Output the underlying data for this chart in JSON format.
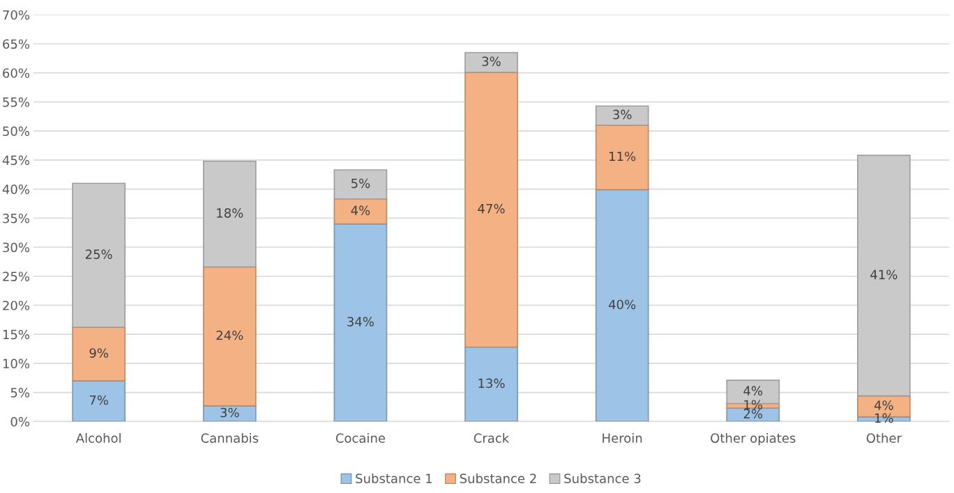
{
  "chart_data": {
    "type": "bar",
    "stacked": true,
    "grid": "y",
    "legend": "bottom",
    "categories": [
      "Alcohol",
      "Cannabis",
      "Cocaine",
      "Crack",
      "Heroin",
      "Other opiates",
      "Other"
    ],
    "series": [
      {
        "name": "Substance 1",
        "color": "#9dc3e6",
        "values": [
          7.0,
          2.7,
          34.0,
          12.8,
          39.9,
          2.3,
          0.8
        ],
        "value_labels": [
          "7%",
          "3%",
          "34%",
          "13%",
          "40%",
          "2%",
          "1%"
        ]
      },
      {
        "name": "Substance 2",
        "color": "#f4b183",
        "values": [
          9.2,
          23.9,
          4.3,
          47.3,
          11.1,
          0.8,
          3.6
        ],
        "value_labels": [
          "9%",
          "24%",
          "4%",
          "47%",
          "11%",
          "1%",
          "4%"
        ]
      },
      {
        "name": "Substance 3",
        "color": "#c9c9c9",
        "values": [
          24.8,
          18.2,
          5.0,
          3.4,
          3.3,
          4.0,
          41.4
        ],
        "value_labels": [
          "25%",
          "18%",
          "5%",
          "3%",
          "3%",
          "4%",
          "41%"
        ]
      }
    ],
    "ylim": [
      0,
      70
    ],
    "yticks": [
      {
        "value": 0,
        "label": "0%"
      },
      {
        "value": 5,
        "label": "5%"
      },
      {
        "value": 10,
        "label": "10%"
      },
      {
        "value": 15,
        "label": "15%"
      },
      {
        "value": 20,
        "label": "20%"
      },
      {
        "value": 25,
        "label": "25%"
      },
      {
        "value": 30,
        "label": "30%"
      },
      {
        "value": 35,
        "label": "35%"
      },
      {
        "value": 40,
        "label": "40%"
      },
      {
        "value": 45,
        "label": "45%"
      },
      {
        "value": 50,
        "label": "50%"
      },
      {
        "value": 55,
        "label": "55%"
      },
      {
        "value": 60,
        "label": "60%"
      },
      {
        "value": 65,
        "label": "65%"
      },
      {
        "value": 70,
        "label": "70%"
      }
    ]
  }
}
